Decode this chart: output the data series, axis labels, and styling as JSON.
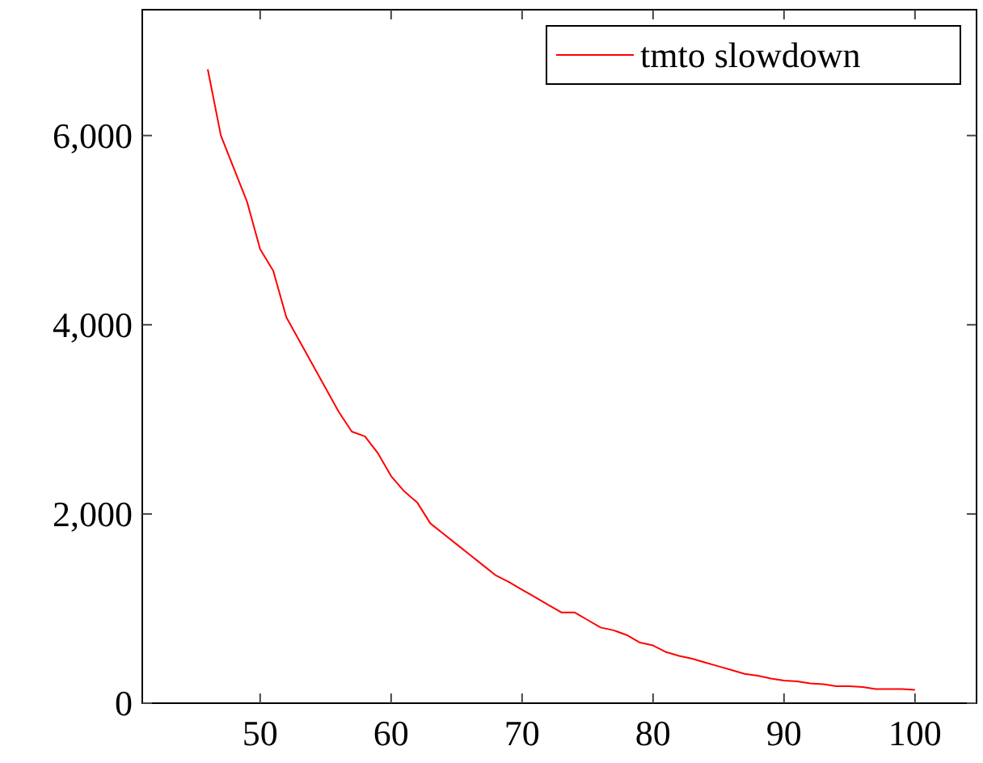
{
  "chart_data": {
    "type": "line",
    "x": [
      46,
      47,
      48,
      49,
      50,
      51,
      52,
      53,
      54,
      55,
      56,
      57,
      58,
      59,
      60,
      61,
      62,
      63,
      64,
      65,
      66,
      67,
      68,
      69,
      70,
      71,
      72,
      73,
      74,
      75,
      76,
      77,
      78,
      79,
      80,
      81,
      82,
      83,
      84,
      85,
      86,
      87,
      88,
      89,
      90,
      91,
      92,
      93,
      94,
      95,
      96,
      97,
      98,
      99,
      100
    ],
    "series": [
      {
        "name": "tmto slowdown",
        "color": "#ff0000",
        "values": [
          6700,
          6000,
          5650,
          5300,
          4800,
          4570,
          4080,
          3830,
          3580,
          3330,
          3080,
          2870,
          2820,
          2640,
          2400,
          2240,
          2120,
          1900,
          1790,
          1680,
          1570,
          1460,
          1350,
          1280,
          1200,
          1120,
          1040,
          960,
          960,
          880,
          800,
          770,
          720,
          640,
          610,
          540,
          500,
          470,
          430,
          390,
          350,
          310,
          290,
          260,
          240,
          230,
          210,
          200,
          180,
          180,
          170,
          150,
          150,
          150,
          140
        ]
      }
    ],
    "xlim": [
      41,
      104.7
    ],
    "ylim": [
      0,
      7330
    ],
    "xticks": [
      50,
      60,
      70,
      80,
      90,
      100
    ],
    "yticks": [
      {
        "value": 0,
        "label": "0"
      },
      {
        "value": 2000,
        "label": "2,000"
      },
      {
        "value": 4000,
        "label": "4,000"
      },
      {
        "value": 6000,
        "label": "6,000"
      }
    ],
    "legend": "top right",
    "grid": false,
    "marker": "none",
    "line_style": "solid"
  }
}
